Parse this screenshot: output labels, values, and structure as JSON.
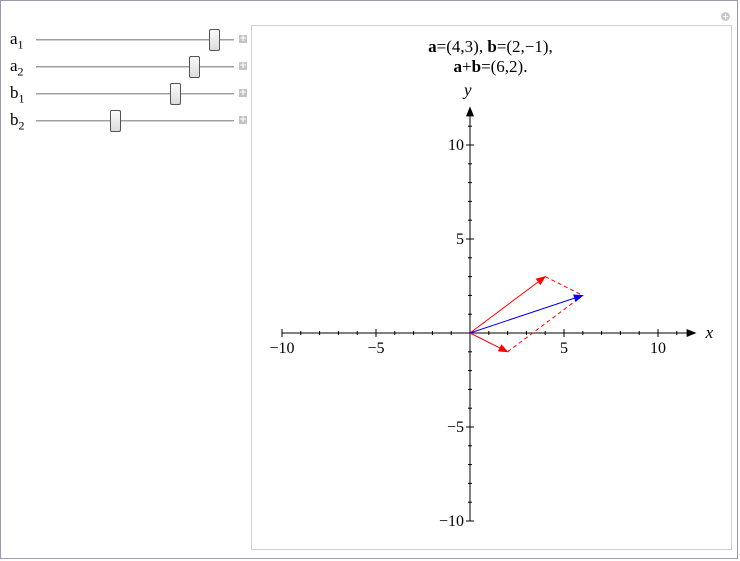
{
  "controls": {
    "range": [
      -5,
      5
    ],
    "sliders": [
      {
        "label": "a",
        "sub": "1",
        "value": 4
      },
      {
        "label": "a",
        "sub": "2",
        "value": 3
      },
      {
        "label": "b",
        "sub": "1",
        "value": 2
      },
      {
        "label": "b",
        "sub": "2",
        "value": -1
      }
    ],
    "expand_icon": "+"
  },
  "plot": {
    "title_line1": {
      "a": "a",
      "a_val": "=(4,3), ",
      "b": "b",
      "b_val": "=(2,−1),"
    },
    "title_line2": {
      "a": "a",
      "plus": "+",
      "b": "b",
      "val": "=(6,2)."
    },
    "xlabel": "x",
    "ylabel": "y",
    "xlim": [
      -10,
      12
    ],
    "ylim": [
      -10,
      12
    ],
    "ticks": [
      -10,
      -5,
      5,
      10
    ],
    "tick_labels": [
      "−10",
      "−5",
      "5",
      "10"
    ],
    "vectors": {
      "a": [
        4,
        3
      ],
      "b": [
        2,
        -1
      ],
      "sum": [
        6,
        2
      ]
    },
    "colors": {
      "a": "#ff0000",
      "b": "#ff0000",
      "sum": "#0000ff",
      "dashed": "#ff0000"
    }
  }
}
